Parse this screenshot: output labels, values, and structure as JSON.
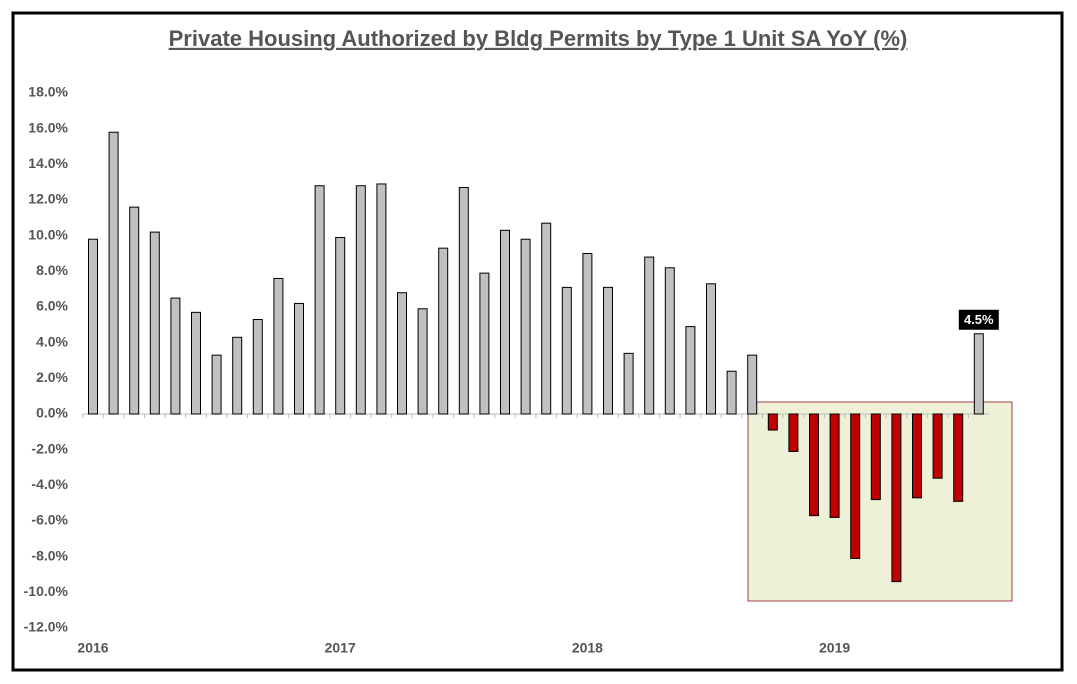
{
  "chart_data": {
    "type": "bar",
    "title": "Private Housing Authorized by Bldg Permits by Type 1 Unit SA YoY (%)",
    "categories": [
      "2016",
      null,
      null,
      null,
      null,
      null,
      null,
      null,
      null,
      null,
      null,
      null,
      "2017",
      null,
      null,
      null,
      null,
      null,
      null,
      null,
      null,
      null,
      null,
      null,
      "2018",
      null,
      null,
      null,
      null,
      null,
      null,
      null,
      null,
      null,
      null,
      null,
      "2019",
      null,
      null,
      null,
      null,
      null,
      null,
      null
    ],
    "values": [
      9.8,
      15.8,
      11.6,
      10.2,
      6.5,
      5.7,
      3.3,
      4.3,
      5.3,
      7.6,
      6.2,
      12.8,
      9.9,
      12.8,
      12.9,
      6.8,
      5.9,
      9.3,
      12.7,
      7.9,
      10.3,
      9.8,
      10.7,
      7.1,
      9.0,
      7.1,
      3.4,
      8.8,
      8.2,
      4.9,
      7.3,
      2.4,
      3.3,
      -0.9,
      -2.1,
      -5.7,
      -5.8,
      -8.1,
      -4.8,
      -9.4,
      -4.7,
      -3.6,
      -4.9,
      4.5
    ],
    "value_labels": [
      null,
      null,
      null,
      null,
      null,
      null,
      null,
      null,
      null,
      null,
      null,
      null,
      null,
      null,
      null,
      null,
      null,
      null,
      null,
      null,
      null,
      null,
      null,
      null,
      null,
      null,
      null,
      null,
      null,
      null,
      null,
      null,
      null,
      null,
      null,
      null,
      null,
      null,
      null,
      null,
      null,
      null,
      null,
      "4.5%"
    ],
    "color": "#c0c0c0",
    "negative_color": "#c00000",
    "ylim": [
      -12,
      18
    ],
    "yticks": [
      {
        "value": -12,
        "label": "-12.0%"
      },
      {
        "value": -10,
        "label": "-10.0%"
      },
      {
        "value": -8,
        "label": "-8.0%"
      },
      {
        "value": -6,
        "label": "-6.0%"
      },
      {
        "value": -4,
        "label": "-4.0%"
      },
      {
        "value": -2,
        "label": "-2.0%"
      },
      {
        "value": 0,
        "label": "0.0%"
      },
      {
        "value": 2,
        "label": "2.0%"
      },
      {
        "value": 4,
        "label": "4.0%"
      },
      {
        "value": 6,
        "label": "6.0%"
      },
      {
        "value": 8,
        "label": "8.0%"
      },
      {
        "value": 10,
        "label": "10.0%"
      },
      {
        "value": 12,
        "label": "12.0%"
      },
      {
        "value": 14,
        "label": "14.0%"
      },
      {
        "value": 16,
        "label": "16.0%"
      },
      {
        "value": 18,
        "label": "18.0%"
      }
    ],
    "grid": false
  }
}
